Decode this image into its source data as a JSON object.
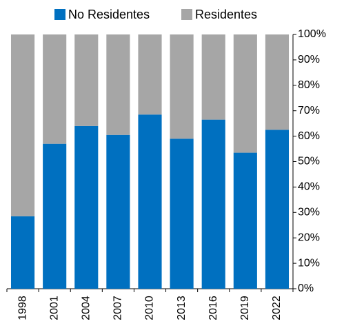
{
  "chart_data": {
    "type": "stacked_bar",
    "categories": [
      "1998",
      "2001",
      "2004",
      "2007",
      "2010",
      "2013",
      "2016",
      "2019",
      "2022"
    ],
    "series": [
      {
        "name": "No Residentes",
        "color": "#0070c0",
        "values": [
          28.5,
          57,
          64,
          60.5,
          68.5,
          59,
          66.5,
          53.5,
          62.5
        ]
      },
      {
        "name": "Residentes",
        "color": "#a6a6a6",
        "values": [
          71.5,
          43,
          36,
          39.5,
          31.5,
          41,
          33.5,
          46.5,
          37.5
        ]
      }
    ],
    "ylim": [
      0,
      100
    ],
    "yticks": [
      {
        "value": 0,
        "label": "0%"
      },
      {
        "value": 10,
        "label": "10%"
      },
      {
        "value": 20,
        "label": "20%"
      },
      {
        "value": 30,
        "label": "30%"
      },
      {
        "value": 40,
        "label": "40%"
      },
      {
        "value": 50,
        "label": "50%"
      },
      {
        "value": 60,
        "label": "60%"
      },
      {
        "value": 70,
        "label": "70%"
      },
      {
        "value": 80,
        "label": "80%"
      },
      {
        "value": 90,
        "label": "90%"
      },
      {
        "value": 100,
        "label": "100%"
      }
    ],
    "legend": "top"
  }
}
